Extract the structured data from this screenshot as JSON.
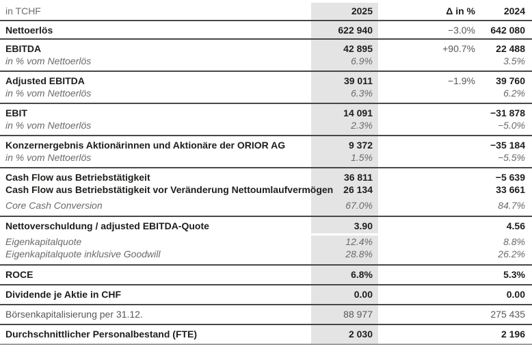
{
  "colors": {
    "highlight_band": "#e4e4e4",
    "rule_dark": "#474747",
    "rule_light": "#9d9d9c",
    "text_dark": "#1d1d1b",
    "text_gray": "#575756",
    "text_sub_gray": "#6a6a69"
  },
  "table": {
    "header": {
      "unit": "in TCHF",
      "col_2025": "2025",
      "col_delta": "Δ in %",
      "col_2024": "2024"
    },
    "rows": {
      "nettoerloes": {
        "label": "Nettoerlös",
        "v2025": "622 940",
        "delta": "−3.0%",
        "v2024": "642 080"
      },
      "ebitda": {
        "label": "EBITDA",
        "v2025": "42 895",
        "delta": "+90.7%",
        "v2024": "22 488"
      },
      "ebitda_margin": {
        "label": "in % vom Nettoerlös",
        "v2025": "6.9%",
        "v2024": "3.5%"
      },
      "adj_ebitda": {
        "label": "Adjusted EBITDA",
        "v2025": "39 011",
        "delta": "−1.9%",
        "v2024": "39 760"
      },
      "adj_ebitda_margin": {
        "label": "in % vom Nettoerlös",
        "v2025": "6.3%",
        "v2024": "6.2%"
      },
      "ebit": {
        "label": "EBIT",
        "v2025": "14 091",
        "v2024": "−31 878"
      },
      "ebit_margin": {
        "label": "in % vom Nettoerlös",
        "v2025": "2.3%",
        "v2024": "−5.0%"
      },
      "konzernergebnis": {
        "label": "Konzernergebnis Aktionärinnen und Aktionäre der ORIOR AG",
        "v2025": "9 372",
        "v2024": "−35 184"
      },
      "konzernergebnis_margin": {
        "label": "in % vom Nettoerlös",
        "v2025": "1.5%",
        "v2024": "−5.5%"
      },
      "cashflow_op": {
        "label": "Cash Flow aus Betriebstätigkeit",
        "v2025": "36 811",
        "v2024": "−5 639"
      },
      "cashflow_op_pre_nwc": {
        "label": "Cash Flow aus Betriebstätigkeit vor Veränderung Nettoumlaufvermögen",
        "v2025": "26 134",
        "v2024": "33 661"
      },
      "core_cash_conversion": {
        "label": "Core Cash Conversion",
        "v2025": "67.0%",
        "v2024": "84.7%"
      },
      "net_debt_ebitda": {
        "label": "Nettoverschuldung / adjusted EBITDA-Quote",
        "v2025": "3.90",
        "v2024": "4.56"
      },
      "equity_ratio": {
        "label": "Eigenkapitalquote",
        "v2025": "12.4%",
        "v2024": "8.8%"
      },
      "equity_ratio_goodwill": {
        "label": "Eigenkapitalquote inklusive Goodwill",
        "v2025": "28.8%",
        "v2024": "26.2%"
      },
      "roce": {
        "label": "ROCE",
        "v2025": "6.8%",
        "v2024": "5.3%"
      },
      "dividend": {
        "label": "Dividende je Aktie in CHF",
        "v2025": "0.00",
        "v2024": "0.00"
      },
      "market_cap": {
        "label": "Börsenkapitalisierung per 31.12.",
        "v2025": "88 977",
        "v2024": "275 435"
      },
      "fte": {
        "label": "Durchschnittlicher Personalbestand (FTE)",
        "v2025": "2 030",
        "v2024": "2 196"
      }
    }
  }
}
